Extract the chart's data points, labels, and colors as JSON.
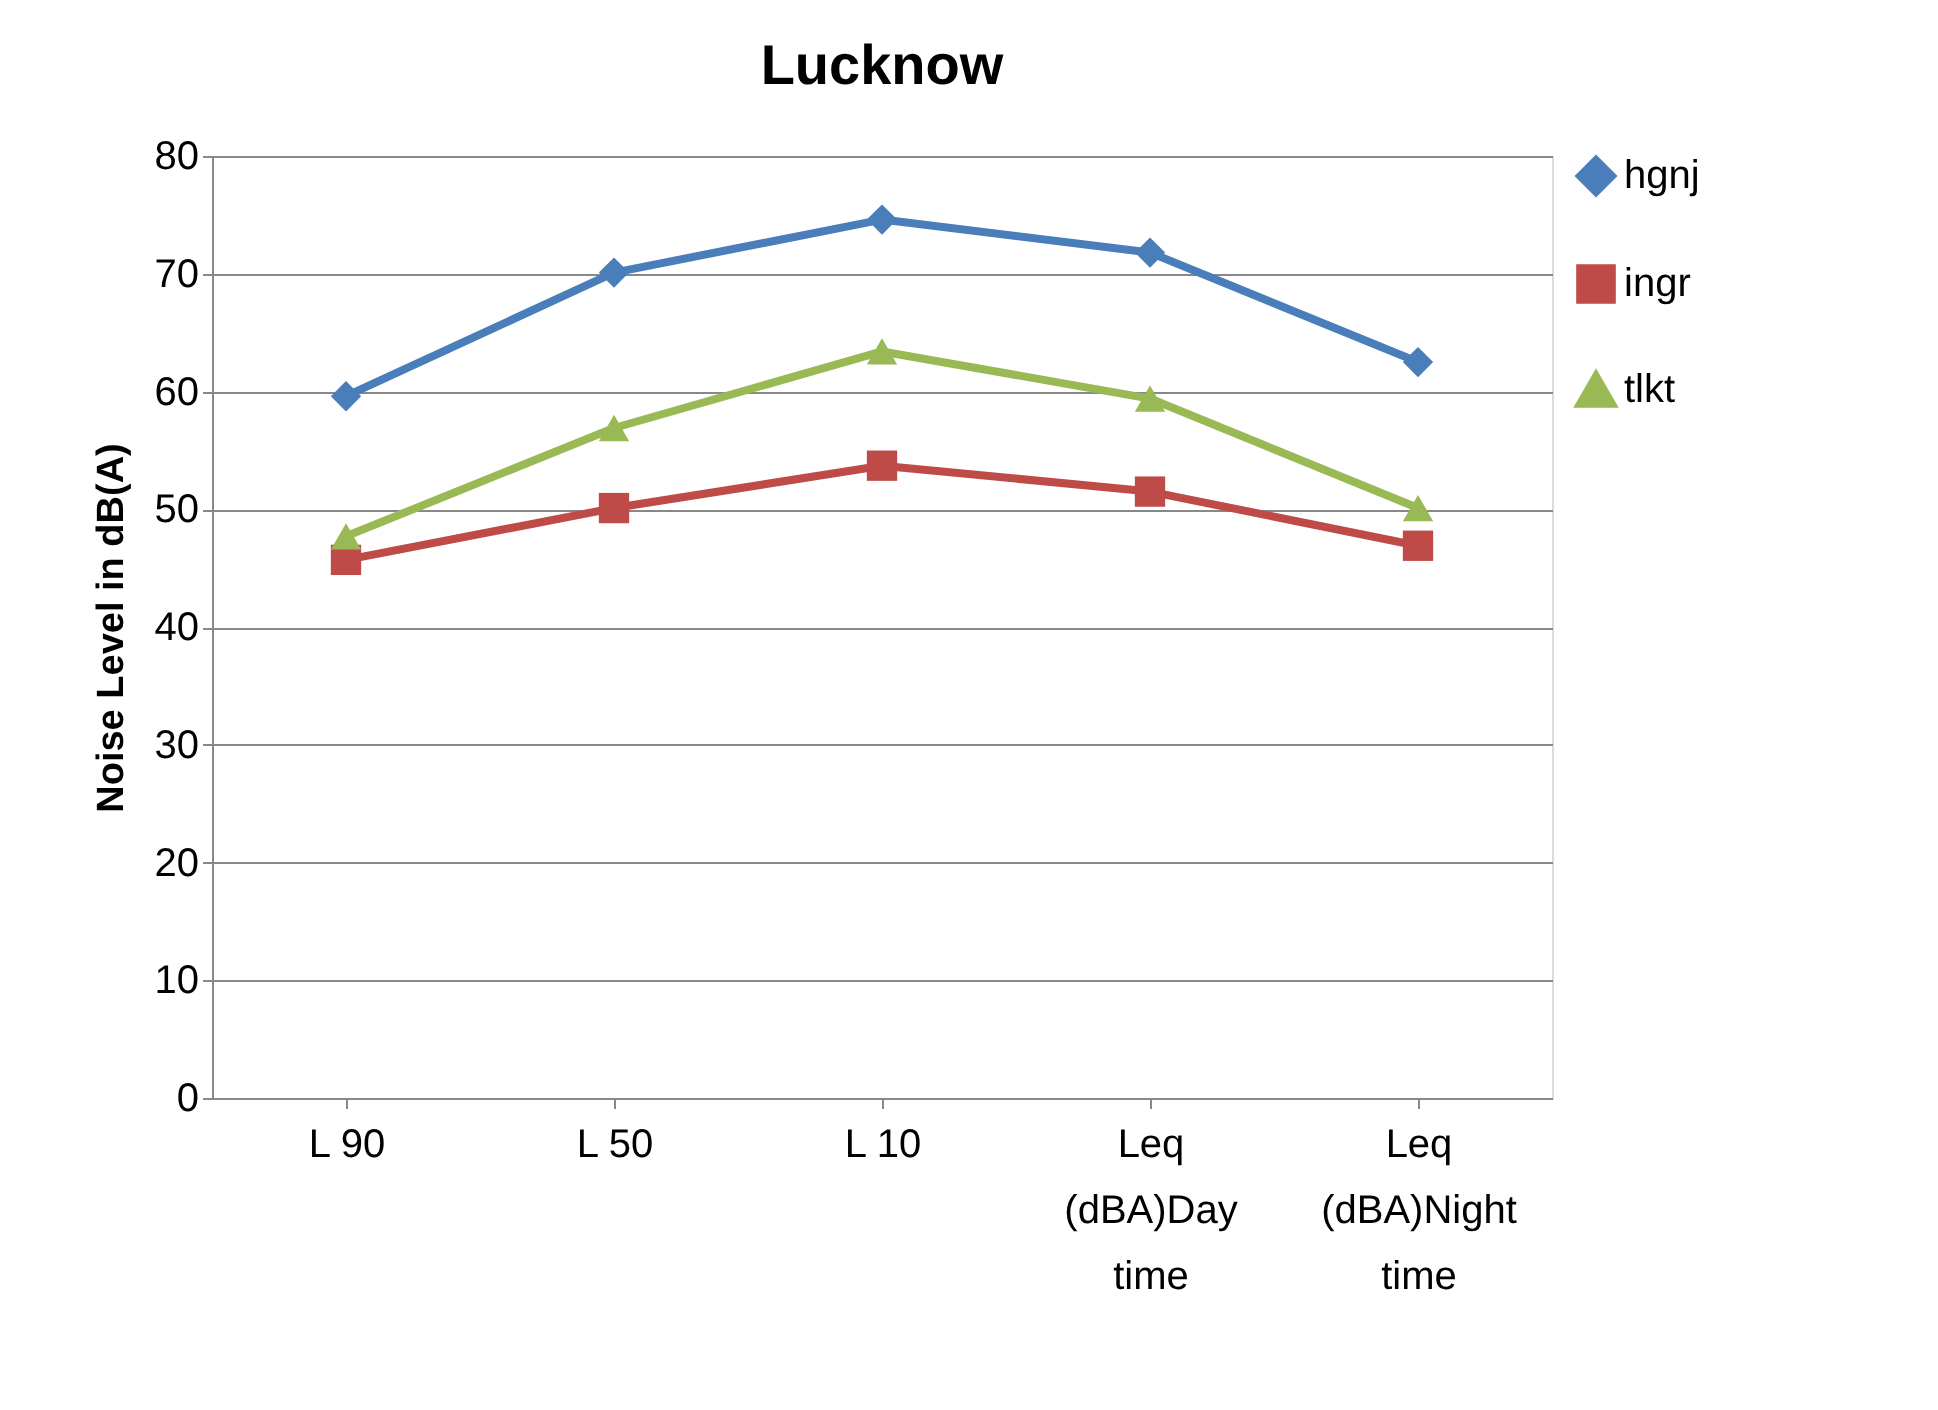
{
  "chart_data": {
    "type": "line",
    "title": "Lucknow",
    "ylabel": "Noise Level in dB(A)",
    "categories": [
      "L 90",
      "L 50",
      "L 10",
      "Leq (dBA)Day time",
      "Leq (dBA)Night time"
    ],
    "series": [
      {
        "name": "hgnj",
        "color": "#4a7ebb",
        "marker": "diamond",
        "values": [
          59.6,
          70.1,
          74.6,
          71.8,
          62.5
        ]
      },
      {
        "name": "ingr",
        "color": "#be4b48",
        "marker": "square",
        "values": [
          45.7,
          50.1,
          53.7,
          51.5,
          46.9
        ]
      },
      {
        "name": "tlkt",
        "color": "#98b954",
        "marker": "triangle",
        "values": [
          47.7,
          56.9,
          63.4,
          59.4,
          50.1
        ]
      }
    ],
    "ylim": [
      0,
      80
    ],
    "yticks": [
      0,
      10,
      20,
      30,
      40,
      50,
      60,
      70,
      80
    ],
    "grid": "y",
    "legend": "right",
    "line_style": "solid"
  }
}
